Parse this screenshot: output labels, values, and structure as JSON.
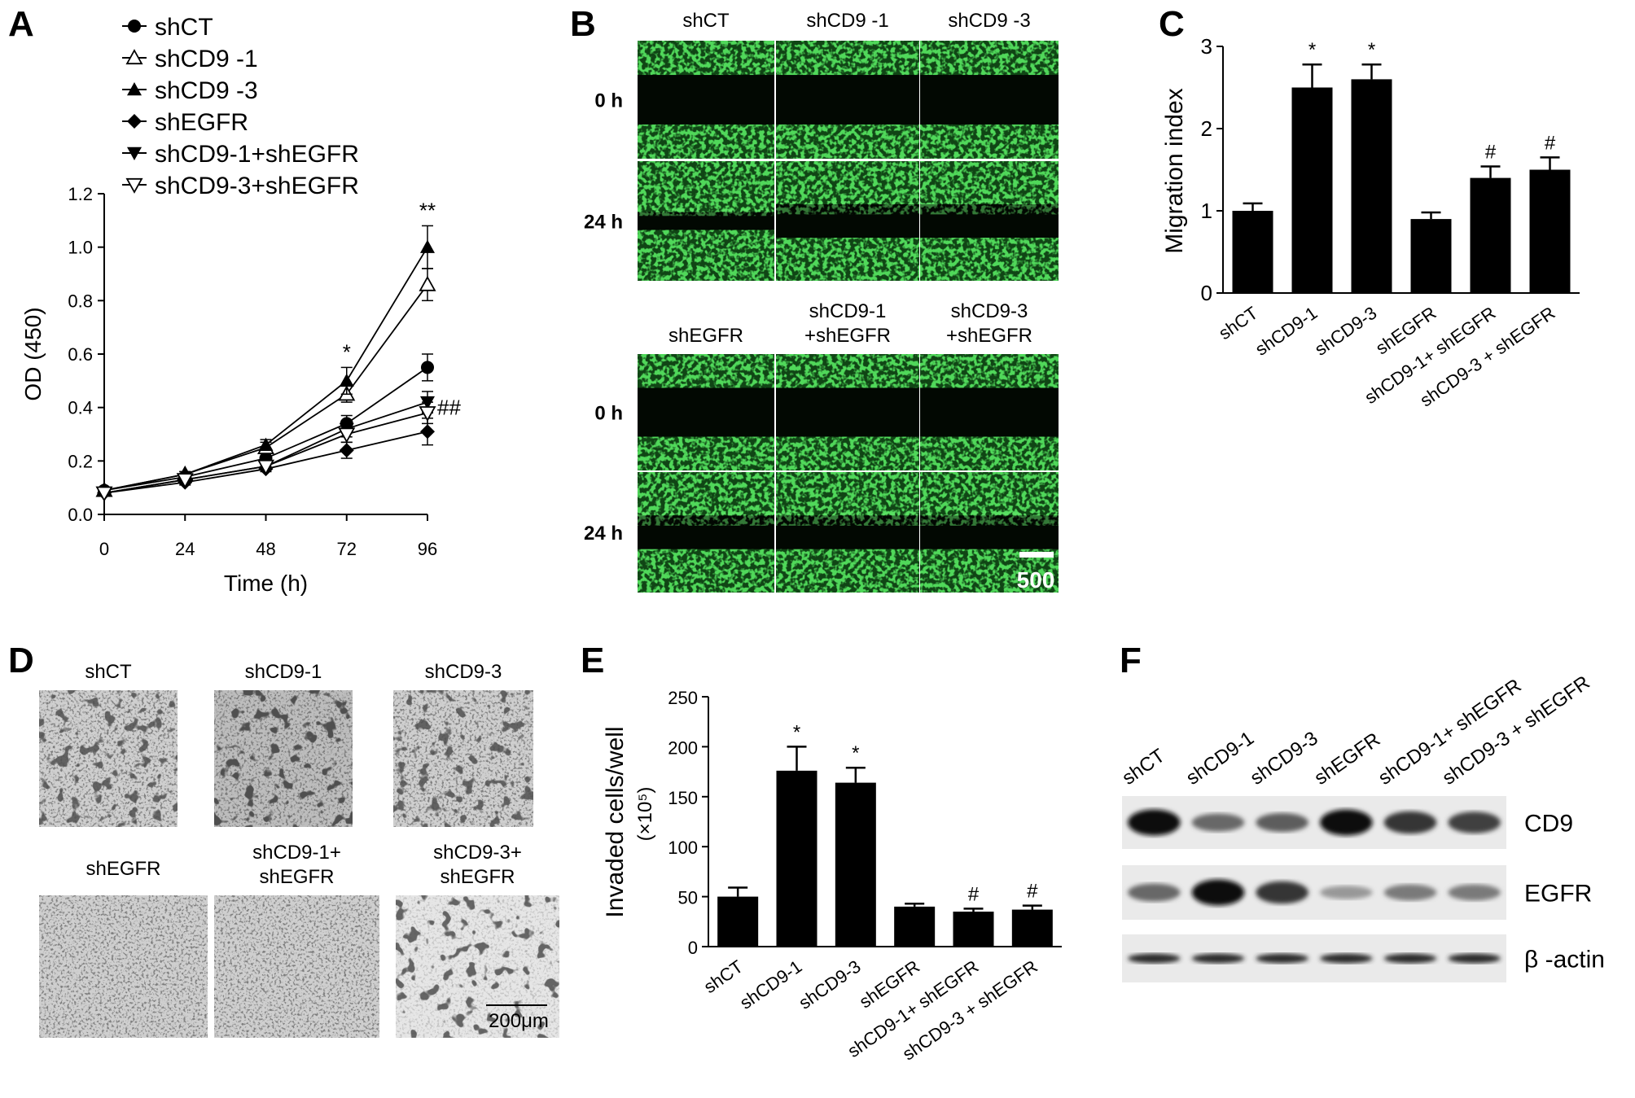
{
  "panels": {
    "A": "A",
    "B": "B",
    "C": "C",
    "D": "D",
    "E": "E",
    "F": "F"
  },
  "colors": {
    "green": "#39c83a",
    "band": "#151515",
    "micro_bg": "#c9c9c9"
  },
  "chart_data": [
    {
      "panel": "A",
      "type": "line",
      "xlabel": "Time (h)",
      "ylabel": "OD (450)",
      "x": [
        0,
        24,
        48,
        72,
        96
      ],
      "x_ticks": [
        "0",
        "24",
        "48",
        "72",
        "96"
      ],
      "y_ticks": [
        "0.0",
        "0.2",
        "0.4",
        "0.6",
        "0.8",
        "1.0",
        "1.2"
      ],
      "ylim": [
        0,
        1.2
      ],
      "legend_position": "top",
      "series": [
        {
          "name": "shCT",
          "marker": "circle-filled",
          "values": [
            0.09,
            0.14,
            0.21,
            0.34,
            0.55
          ],
          "errors": [
            0.01,
            0.01,
            0.02,
            0.03,
            0.05
          ]
        },
        {
          "name": "shCD9 -1",
          "marker": "triangle-open",
          "values": [
            0.09,
            0.15,
            0.25,
            0.45,
            0.86
          ],
          "errors": [
            0.01,
            0.01,
            0.02,
            0.03,
            0.06
          ]
        },
        {
          "name": "shCD9 -3",
          "marker": "triangle-filled",
          "values": [
            0.09,
            0.15,
            0.26,
            0.5,
            1.0
          ],
          "errors": [
            0.01,
            0.01,
            0.02,
            0.05,
            0.08
          ]
        },
        {
          "name": "shEGFR",
          "marker": "diamond-filled",
          "values": [
            0.08,
            0.12,
            0.17,
            0.24,
            0.31
          ],
          "errors": [
            0.01,
            0.01,
            0.01,
            0.03,
            0.05
          ]
        },
        {
          "name": "shCD9-1+shEGFR",
          "marker": "triangle-down-filled",
          "values": [
            0.08,
            0.13,
            0.18,
            0.32,
            0.42
          ],
          "errors": [
            0.01,
            0.01,
            0.01,
            0.03,
            0.04
          ]
        },
        {
          "name": "shCD9-3+shEGFR",
          "marker": "triangle-down-open",
          "values": [
            0.08,
            0.13,
            0.18,
            0.3,
            0.38
          ],
          "errors": [
            0.01,
            0.01,
            0.01,
            0.03,
            0.04
          ]
        }
      ],
      "annotations": [
        {
          "x": 72,
          "y": 0.58,
          "text": "*"
        },
        {
          "x": 96,
          "y": 1.11,
          "text": "**"
        },
        {
          "x": 96,
          "y": 0.45,
          "text": "##"
        }
      ]
    },
    {
      "panel": "C",
      "type": "bar",
      "ylabel": "Migration index",
      "categories": [
        "shCT",
        "shCD9-1",
        "shCD9-3",
        "shEGFR",
        "shCD9-1+ shEGFR",
        "shCD9-3 + shEGFR"
      ],
      "values": [
        1.0,
        2.5,
        2.6,
        0.9,
        1.4,
        1.5
      ],
      "errors": [
        0.09,
        0.28,
        0.18,
        0.08,
        0.14,
        0.15
      ],
      "marks": [
        "",
        "*",
        "*",
        "",
        "#",
        "#"
      ],
      "y_ticks": [
        "0",
        "1",
        "2",
        "3"
      ],
      "ylim": [
        0,
        3
      ]
    },
    {
      "panel": "E",
      "type": "bar",
      "ylabel": "Invaded cells/well",
      "ylabel2": "(×10⁵)",
      "categories": [
        "shCT",
        "shCD9-1",
        "shCD9-3",
        "shEGFR",
        "shCD9-1+ shEGFR",
        "shCD9-3 + shEGFR"
      ],
      "values": [
        50,
        176,
        164,
        40,
        35,
        37
      ],
      "errors": [
        9,
        24,
        15,
        3,
        3,
        4
      ],
      "marks": [
        "",
        "*",
        "*",
        "",
        "#",
        "#"
      ],
      "y_ticks": [
        "0",
        "50",
        "100",
        "150",
        "200",
        "250"
      ],
      "ylim": [
        0,
        250
      ]
    }
  ],
  "panel_B": {
    "top_headers": [
      "shCT",
      "shCD9 -1",
      "shCD9 -3"
    ],
    "bottom_headers": [
      "shEGFR",
      "shCD9-1\n+shEGFR",
      "shCD9-3\n+shEGFR"
    ],
    "bottom_header_lines": [
      [
        "shEGFR"
      ],
      [
        "shCD9-1",
        "+shEGFR"
      ],
      [
        "shCD9-3",
        "+shEGFR"
      ]
    ],
    "row_labels": [
      "0 h",
      "24 h"
    ],
    "scale": "500"
  },
  "panel_D": {
    "top_headers": [
      "shCT",
      "shCD9-1",
      "shCD9-3"
    ],
    "bottom_header_lines": [
      [
        "shEGFR"
      ],
      [
        "shCD9-1+",
        "shEGFR"
      ],
      [
        "shCD9-3+",
        "shEGFR"
      ]
    ],
    "scale": "200μm"
  },
  "panel_F": {
    "lanes": [
      "shCT",
      "shCD9-1",
      "shCD9-3",
      "shEGFR",
      "shCD9-1+ shEGFR",
      "shCD9-3 + shEGFR"
    ],
    "proteins": [
      "CD9",
      "EGFR",
      "β -actin"
    ],
    "band_intensity": [
      [
        1.0,
        0.55,
        0.6,
        1.0,
        0.8,
        0.75
      ],
      [
        0.55,
        1.0,
        0.8,
        0.3,
        0.45,
        0.45
      ],
      [
        0.85,
        0.85,
        0.85,
        0.85,
        0.85,
        0.85
      ]
    ]
  }
}
